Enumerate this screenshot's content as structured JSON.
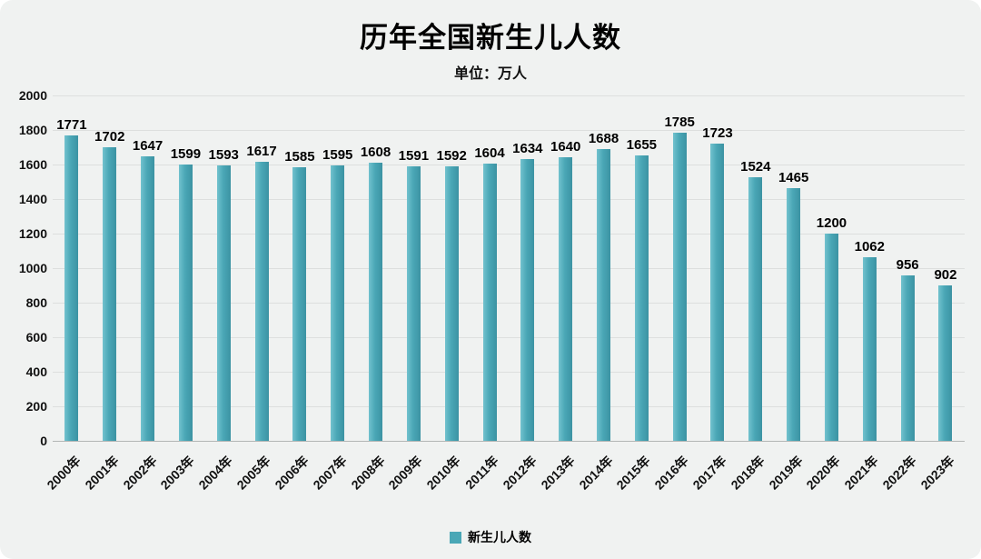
{
  "header": {
    "title": "历年全国新生儿人数",
    "subtitle": "单位：万人"
  },
  "legend": {
    "label": "新生儿人数",
    "color": "#4aa7b6"
  },
  "chart_data": {
    "type": "bar",
    "title": "历年全国新生儿人数",
    "subtitle": "单位：万人",
    "xlabel": "",
    "ylabel": "",
    "unit": "万人",
    "categories": [
      "2000年",
      "2001年",
      "2002年",
      "2003年",
      "2004年",
      "2005年",
      "2006年",
      "2007年",
      "2008年",
      "2009年",
      "2010年",
      "2011年",
      "2012年",
      "2013年",
      "2014年",
      "2015年",
      "2016年",
      "2017年",
      "2018年",
      "2019年",
      "2020年",
      "2021年",
      "2022年",
      "2023年"
    ],
    "values": [
      1771,
      1702,
      1647,
      1599,
      1593,
      1617,
      1585,
      1595,
      1608,
      1591,
      1592,
      1604,
      1634,
      1640,
      1688,
      1655,
      1785,
      1723,
      1524,
      1465,
      1200,
      1062,
      956,
      902
    ],
    "ylim": [
      0,
      2000
    ],
    "yticks": [
      0,
      200,
      400,
      600,
      800,
      1000,
      1200,
      1400,
      1600,
      1800,
      2000
    ],
    "grid": true,
    "bar_color": "#4aa7b6",
    "legend": [
      "新生儿人数"
    ],
    "legend_position": "bottom"
  }
}
